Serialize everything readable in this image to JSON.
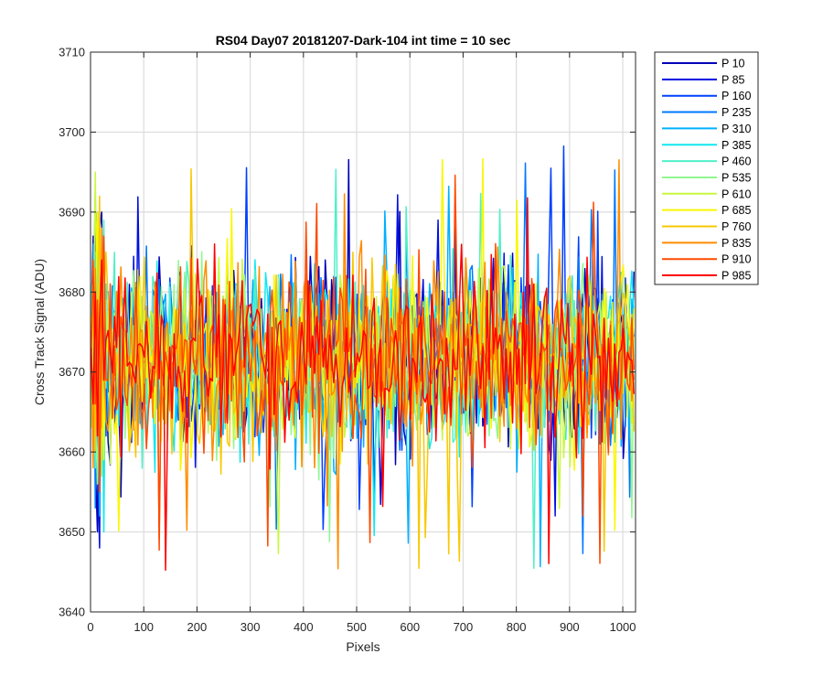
{
  "chart_data": {
    "type": "line",
    "title": "RS04 Day07 20181207-Dark-104 int time = 10 sec",
    "xlabel": "Pixels",
    "ylabel": "Cross Track Signal (ADU)",
    "xlim": [
      0,
      1024
    ],
    "ylim": [
      3640,
      3710
    ],
    "xticks": [
      0,
      100,
      200,
      300,
      400,
      500,
      600,
      700,
      800,
      900,
      1000
    ],
    "yticks": [
      3640,
      3650,
      3660,
      3670,
      3680,
      3690,
      3700,
      3710
    ],
    "grid": true,
    "legend_position": "outside-top-right",
    "x_start": 1,
    "x_end": 1024,
    "x_step": 4,
    "series": [
      {
        "name": "P 10",
        "color": "#0000b8",
        "mean": 3671.5,
        "spread": 7.5,
        "values": [
          3674,
          3687,
          3659,
          3650,
          3688,
          3690,
          3661,
          3671
        ]
      },
      {
        "name": "P 85",
        "color": "#0010e0",
        "mean": 3671.5,
        "spread": 7.5,
        "values": [
          3666,
          3678,
          3692,
          3660,
          3648,
          3685,
          3671,
          3676
        ]
      },
      {
        "name": "P 160",
        "color": "#0040ff",
        "mean": 3671.5,
        "spread": 7.5,
        "values": [
          3672,
          3664,
          3681,
          3690,
          3655,
          3670,
          3683,
          3662
        ]
      },
      {
        "name": "P 235",
        "color": "#0078ff",
        "mean": 3671.5,
        "spread": 7.5,
        "values": [
          3669,
          3686,
          3653,
          3676,
          3684,
          3659,
          3672,
          3680
        ]
      },
      {
        "name": "P 310",
        "color": "#00b0ff",
        "mean": 3671.5,
        "spread": 7.5,
        "values": [
          3678,
          3660,
          3685,
          3669,
          3652,
          3683,
          3667,
          3674
        ]
      },
      {
        "name": "P 385",
        "color": "#10e8f0",
        "mean": 3671.5,
        "spread": 7.5,
        "values": [
          3664,
          3682,
          3671,
          3688,
          3661,
          3676,
          3650,
          3681
        ]
      },
      {
        "name": "P 460",
        "color": "#50f0c8",
        "mean": 3671.5,
        "spread": 7.5,
        "values": [
          3681,
          3667,
          3658,
          3684,
          3673,
          3662,
          3689,
          3668
        ]
      },
      {
        "name": "P 535",
        "color": "#90f890",
        "mean": 3671.5,
        "spread": 7.5,
        "values": [
          3670,
          3683,
          3665,
          3656,
          3686,
          3674,
          3661,
          3679
        ]
      },
      {
        "name": "P 610",
        "color": "#c8f840",
        "mean": 3671.5,
        "spread": 7.5,
        "values": [
          3663,
          3675,
          3695,
          3668,
          3681,
          3657,
          3684,
          3672
        ]
      },
      {
        "name": "P 685",
        "color": "#f8f800",
        "mean": 3671.5,
        "spread": 7.5,
        "values": [
          3677,
          3662,
          3679,
          3690,
          3666,
          3683,
          3659,
          3675
        ]
      },
      {
        "name": "P 760",
        "color": "#f8c800",
        "mean": 3671.5,
        "spread": 7.5,
        "values": [
          3668,
          3681,
          3660,
          3674,
          3692,
          3663,
          3678,
          3685
        ]
      },
      {
        "name": "P 835",
        "color": "#ff8c00",
        "mean": 3671.5,
        "spread": 7.5,
        "values": [
          3675,
          3658,
          3683,
          3670,
          3661,
          3688,
          3672,
          3664
        ]
      },
      {
        "name": "P 910",
        "color": "#ff4a00",
        "mean": 3671.5,
        "spread": 7.5,
        "values": [
          3671,
          3684,
          3666,
          3679,
          3655,
          3676,
          3687,
          3669
        ]
      },
      {
        "name": "P 985",
        "color": "#ff0000",
        "mean": 3671.5,
        "spread": 7.5,
        "values": [
          3673,
          3666,
          3680,
          3662,
          3677,
          3684,
          3669,
          3674
        ]
      }
    ]
  }
}
